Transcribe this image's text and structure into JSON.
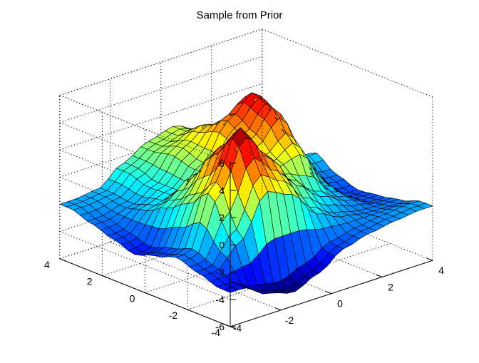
{
  "chart_data": {
    "type": "surface",
    "title": "Sample from Prior",
    "xlabel": "",
    "ylabel": "",
    "zlabel": "",
    "xlim": [
      -4,
      4
    ],
    "ylim": [
      -4,
      4
    ],
    "zlim": [
      -6,
      6
    ],
    "x_ticks": [
      -4,
      -2,
      0,
      2,
      4
    ],
    "y_ticks": [
      -4,
      -2,
      0,
      2,
      4
    ],
    "z_ticks": [
      -6,
      -4,
      -2,
      0,
      2,
      4,
      6
    ],
    "x_tick_labels": [
      "-2",
      "0",
      "2",
      "4"
    ],
    "y_tick_labels": [
      "4",
      "2",
      "0",
      "-2",
      "-4"
    ],
    "z_tick_labels": [
      "6",
      "4",
      "2",
      "0",
      "-2",
      "-4",
      "-6"
    ],
    "x_corner_label": "-4",
    "grid": true,
    "colormap": "jet",
    "edge_color": "#000000",
    "grid_resolution": 25,
    "x": [
      -3.5,
      -2.5,
      -1.5,
      -0.5,
      0.5,
      1.5,
      2.5,
      3.5
    ],
    "y": [
      -3.5,
      -2.5,
      -1.5,
      -0.5,
      0.5,
      1.5,
      2.5,
      3.5
    ],
    "z": [
      [
        -3.5,
        -4.5,
        -5.0,
        -4.2,
        -3.0,
        -2.5,
        -2.2,
        -2.0
      ],
      [
        -3.0,
        -1.0,
        2.5,
        1.5,
        -1.0,
        -2.0,
        -2.4,
        -2.5
      ],
      [
        -2.5,
        2.0,
        5.5,
        3.0,
        0.5,
        -1.0,
        -2.0,
        -2.8
      ],
      [
        -3.0,
        0.5,
        3.5,
        1.5,
        1.0,
        2.0,
        -1.5,
        -3.0
      ],
      [
        -3.5,
        -0.5,
        1.0,
        0.5,
        2.0,
        4.0,
        0.0,
        -2.5
      ],
      [
        -3.0,
        -1.5,
        -1.0,
        0.5,
        3.0,
        4.5,
        2.0,
        -1.5
      ],
      [
        -2.5,
        -2.0,
        -1.0,
        1.0,
        2.0,
        1.5,
        -0.5,
        -2.8
      ],
      [
        -2.0,
        -1.8,
        -0.5,
        0.5,
        1.0,
        0.2,
        -1.5,
        -1.0
      ]
    ]
  }
}
